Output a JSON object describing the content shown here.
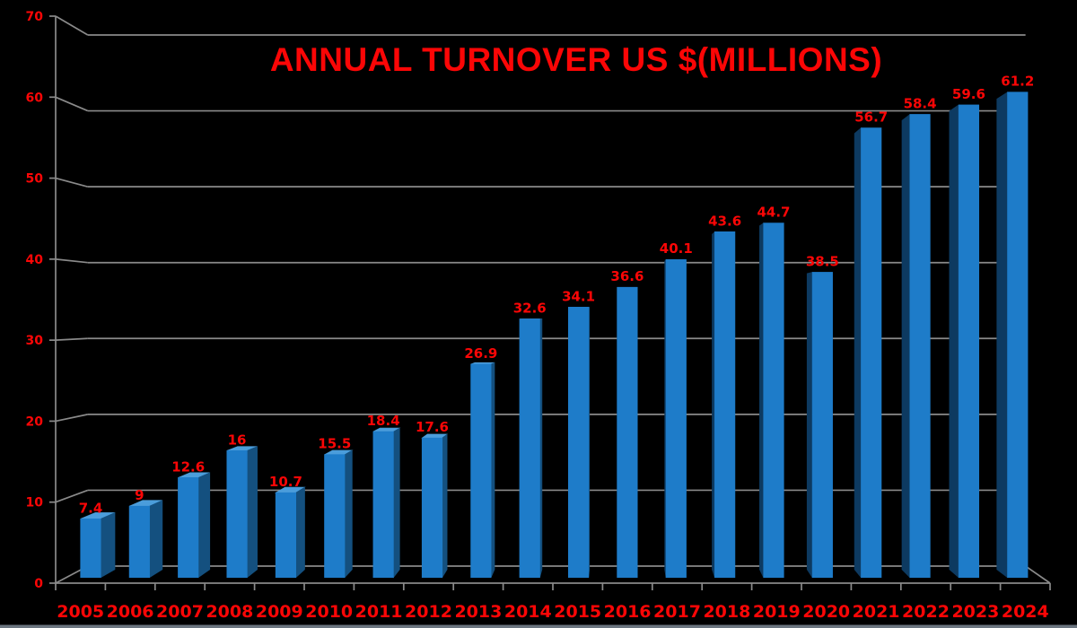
{
  "chart_data": {
    "type": "bar",
    "style": "3d-column-perspective",
    "title": "ANNUAL TURNOVER US $(MILLIONS)",
    "categories": [
      "2005",
      "2006",
      "2007",
      "2008",
      "2009",
      "2010",
      "2011",
      "2012",
      "2013",
      "2014",
      "2015",
      "2016",
      "2017",
      "2018",
      "2019",
      "2020",
      "2021",
      "2022",
      "2023",
      "2024"
    ],
    "values": [
      7.4,
      9,
      12.6,
      16,
      10.7,
      15.5,
      18.4,
      17.6,
      26.9,
      32.6,
      34.1,
      36.6,
      40.1,
      43.6,
      44.7,
      38.5,
      56.7,
      58.4,
      59.6,
      61.2
    ],
    "xlabel": "",
    "ylabel": "",
    "ylim": [
      0,
      70
    ],
    "yticks": [
      0,
      10,
      20,
      30,
      40,
      50,
      60,
      70
    ],
    "grid": true,
    "legend": false,
    "colors": {
      "background": "#000000",
      "title": "#fb0606",
      "value_labels": "#fb0606",
      "axis_labels": "#fb0606",
      "axis": "#8a8a8a",
      "gridline": "#8a8a8a",
      "bar_front": "#1e7cc9",
      "bar_top": "#4b9ddb",
      "bar_side_right": "#14507f",
      "bar_side_left": "#0d3a61",
      "bottom_strip": "#6b7580"
    }
  }
}
